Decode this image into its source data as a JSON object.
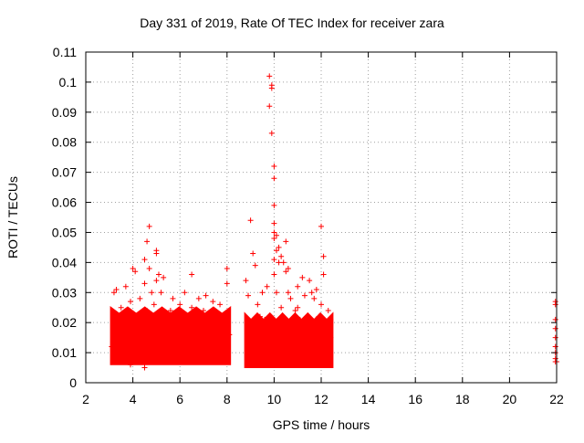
{
  "chart_data": {
    "type": "scatter",
    "title": "Day 331 of 2019, Rate Of TEC Index for receiver zara",
    "xlabel": "GPS time / hours",
    "ylabel": "ROTI / TECUs",
    "xlim": [
      2,
      22
    ],
    "ylim": [
      0,
      0.11
    ],
    "xticks": [
      "2",
      "4",
      "6",
      "8",
      "10",
      "12",
      "14",
      "16",
      "18",
      "20",
      "22"
    ],
    "yticks": [
      "0",
      "0.01",
      "0.02",
      "0.03",
      "0.04",
      "0.05",
      "0.06",
      "0.07",
      "0.08",
      "0.09",
      "0.1",
      "0.11"
    ],
    "grid": true,
    "marker": "+",
    "color": "#ff0000",
    "series": [
      {
        "points": [
          [
            3.1,
            0.012
          ],
          [
            3.2,
            0.022
          ],
          [
            3.2,
            0.03
          ],
          [
            3.3,
            0.031
          ],
          [
            3.3,
            0.008
          ],
          [
            3.4,
            0.015
          ],
          [
            3.5,
            0.025
          ],
          [
            3.6,
            0.018
          ],
          [
            3.7,
            0.032
          ],
          [
            3.7,
            0.01
          ],
          [
            3.8,
            0.02
          ],
          [
            3.9,
            0.027
          ],
          [
            3.9,
            0.006
          ],
          [
            4.0,
            0.038
          ],
          [
            4.0,
            0.016
          ],
          [
            4.1,
            0.037
          ],
          [
            4.1,
            0.022
          ],
          [
            4.2,
            0.012
          ],
          [
            4.3,
            0.028
          ],
          [
            4.4,
            0.019
          ],
          [
            4.5,
            0.041
          ],
          [
            4.5,
            0.033
          ],
          [
            4.5,
            0.005
          ],
          [
            4.6,
            0.024
          ],
          [
            4.6,
            0.047
          ],
          [
            4.7,
            0.052
          ],
          [
            4.7,
            0.038
          ],
          [
            4.8,
            0.03
          ],
          [
            4.8,
            0.014
          ],
          [
            4.9,
            0.026
          ],
          [
            5.0,
            0.043
          ],
          [
            5.0,
            0.044
          ],
          [
            5.0,
            0.034
          ],
          [
            5.1,
            0.036
          ],
          [
            5.1,
            0.018
          ],
          [
            5.2,
            0.03
          ],
          [
            5.2,
            0.01
          ],
          [
            5.3,
            0.035
          ],
          [
            5.4,
            0.022
          ],
          [
            5.5,
            0.016
          ],
          [
            5.6,
            0.024
          ],
          [
            5.7,
            0.028
          ],
          [
            5.8,
            0.012
          ],
          [
            5.9,
            0.02
          ],
          [
            6.0,
            0.026
          ],
          [
            6.1,
            0.015
          ],
          [
            6.2,
            0.03
          ],
          [
            6.3,
            0.022
          ],
          [
            6.4,
            0.009
          ],
          [
            6.5,
            0.036
          ],
          [
            6.5,
            0.025
          ],
          [
            6.6,
            0.017
          ],
          [
            6.7,
            0.021
          ],
          [
            6.8,
            0.028
          ],
          [
            6.9,
            0.011
          ],
          [
            7.0,
            0.024
          ],
          [
            7.1,
            0.029
          ],
          [
            7.2,
            0.016
          ],
          [
            7.3,
            0.022
          ],
          [
            7.4,
            0.027
          ],
          [
            7.5,
            0.013
          ],
          [
            7.6,
            0.02
          ],
          [
            7.7,
            0.026
          ],
          [
            7.8,
            0.01
          ],
          [
            7.9,
            0.018
          ],
          [
            8.0,
            0.038
          ],
          [
            8.0,
            0.033
          ],
          [
            8.0,
            0.023
          ],
          [
            8.1,
            0.016
          ],
          [
            8.8,
            0.034
          ],
          [
            8.9,
            0.029
          ],
          [
            9.0,
            0.054
          ],
          [
            9.0,
            0.018
          ],
          [
            9.1,
            0.043
          ],
          [
            9.2,
            0.039
          ],
          [
            9.2,
            0.012
          ],
          [
            9.3,
            0.026
          ],
          [
            9.4,
            0.022
          ],
          [
            9.5,
            0.03
          ],
          [
            9.6,
            0.021
          ],
          [
            9.7,
            0.032
          ],
          [
            9.7,
            0.015
          ],
          [
            9.8,
            0.102
          ],
          [
            9.8,
            0.092
          ],
          [
            9.9,
            0.099
          ],
          [
            9.9,
            0.098
          ],
          [
            9.9,
            0.083
          ],
          [
            10.0,
            0.072
          ],
          [
            10.0,
            0.068
          ],
          [
            10.0,
            0.059
          ],
          [
            10.0,
            0.053
          ],
          [
            10.0,
            0.05
          ],
          [
            10.0,
            0.048
          ],
          [
            10.0,
            0.041
          ],
          [
            10.0,
            0.036
          ],
          [
            10.1,
            0.049
          ],
          [
            10.1,
            0.044
          ],
          [
            10.1,
            0.03
          ],
          [
            10.2,
            0.045
          ],
          [
            10.2,
            0.04
          ],
          [
            10.3,
            0.042
          ],
          [
            10.3,
            0.025
          ],
          [
            10.4,
            0.04
          ],
          [
            10.5,
            0.047
          ],
          [
            10.5,
            0.037
          ],
          [
            10.5,
            0.013
          ],
          [
            10.6,
            0.038
          ],
          [
            10.6,
            0.03
          ],
          [
            10.7,
            0.028
          ],
          [
            10.8,
            0.019
          ],
          [
            10.9,
            0.024
          ],
          [
            11.0,
            0.032
          ],
          [
            11.0,
            0.025
          ],
          [
            11.1,
            0.021
          ],
          [
            11.2,
            0.035
          ],
          [
            11.3,
            0.029
          ],
          [
            11.4,
            0.016
          ],
          [
            11.5,
            0.034
          ],
          [
            11.6,
            0.03
          ],
          [
            11.7,
            0.028
          ],
          [
            11.8,
            0.031
          ],
          [
            11.9,
            0.022
          ],
          [
            12.0,
            0.026
          ],
          [
            12.0,
            0.052
          ],
          [
            12.1,
            0.042
          ],
          [
            12.1,
            0.036
          ],
          [
            12.1,
            0.02
          ],
          [
            12.2,
            0.018
          ],
          [
            12.3,
            0.024
          ],
          [
            12.3,
            0.01
          ],
          [
            12.4,
            0.015
          ],
          [
            12.4,
            0.021
          ],
          [
            21.95,
            0.027
          ],
          [
            21.95,
            0.026
          ],
          [
            21.95,
            0.021
          ],
          [
            21.95,
            0.018
          ],
          [
            21.95,
            0.015
          ],
          [
            21.95,
            0.012
          ],
          [
            21.95,
            0.01
          ],
          [
            21.95,
            0.008
          ],
          [
            21.95,
            0.007
          ],
          [
            22.0,
            0.007
          ]
        ]
      }
    ],
    "dense_regions": [
      {
        "x_start": 3.05,
        "x_end": 8.15,
        "y_floor": 0.006,
        "y_median": 0.013,
        "y_top": 0.024
      },
      {
        "x_start": 8.75,
        "x_end": 12.5,
        "y_floor": 0.005,
        "y_median": 0.012,
        "y_top": 0.022
      }
    ]
  }
}
